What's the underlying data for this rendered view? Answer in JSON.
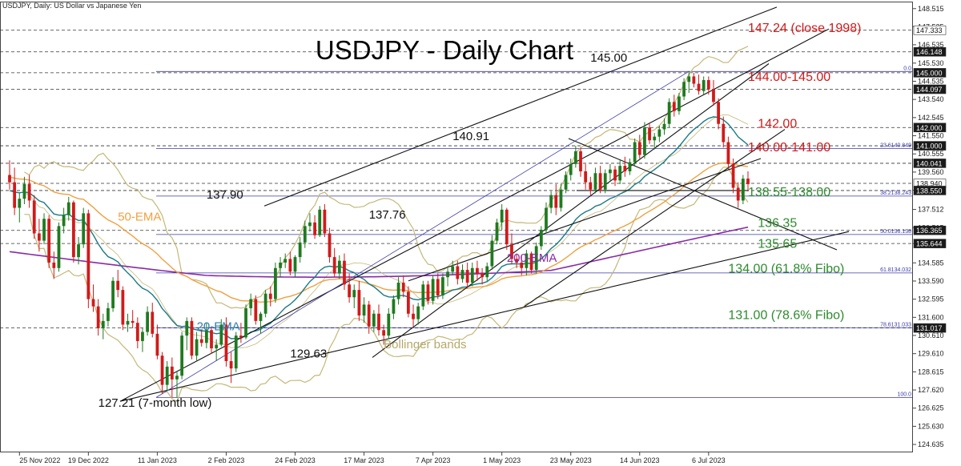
{
  "header": {
    "symbol_line": "USDJPY, Daily:  US Dollar vs Japanese Yen"
  },
  "chart_data": {
    "type": "candlestick",
    "title": "USDJPY - Daily Chart",
    "colors": {
      "up": "#1f7a1f",
      "down": "#d11a1a",
      "ema20": "#1a7a86",
      "ema50": "#f0a040",
      "ema200": "#8a2aa8",
      "bollinger": "#c4b878",
      "trend": "#111111",
      "fib": "#3a3aa8",
      "resistance_label": "#d11a1a",
      "support_label": "#2e8b2e",
      "ema50_label": "#f0a040",
      "ema20_label": "#2a7fb0",
      "ema200_label": "#8a2aa8",
      "bollinger_label": "#b5a86a"
    },
    "x_ticks": [
      "25 Nov 2022",
      "19 Dec 2022",
      "11 Jan 2023",
      "2 Feb 2023",
      "24 Feb 2023",
      "17 Mar 2023",
      "7 Apr 2023",
      "1 May 2023",
      "23 May 2023",
      "14 Jun 2023",
      "6 Jul 2023"
    ],
    "y_ticks": [
      "148.515",
      "147.525",
      "146.535",
      "145.530",
      "144.535",
      "143.540",
      "142.545",
      "141.550",
      "140.555",
      "139.560",
      "138.565",
      "137.512",
      "136.515",
      "135.644",
      "134.585",
      "133.590",
      "132.595",
      "131.600",
      "130.610",
      "129.610",
      "128.615",
      "127.620",
      "126.625",
      "125.630",
      "124.635"
    ],
    "y_range": [
      124.2,
      148.9
    ],
    "price_boxes": [
      {
        "label": "147.333",
        "value": 147.333,
        "dark": false
      },
      {
        "label": "146.148",
        "value": 146.148,
        "dark": true
      },
      {
        "label": "145.000",
        "value": 145.0,
        "dark": true
      },
      {
        "label": "144.097",
        "value": 144.097,
        "dark": true
      },
      {
        "label": "142.000",
        "value": 142.0,
        "dark": true
      },
      {
        "label": "141.000",
        "value": 141.0,
        "dark": true
      },
      {
        "label": "140.041",
        "value": 140.041,
        "dark": true
      },
      {
        "label": "138.940",
        "value": 138.94,
        "dark": false
      },
      {
        "label": "138.550",
        "value": 138.55,
        "dark": true
      },
      {
        "label": "136.365",
        "value": 136.365,
        "dark": true
      },
      {
        "label": "135.644",
        "value": 135.644,
        "dark": true
      },
      {
        "label": "131.017",
        "value": 131.017,
        "dark": true
      }
    ],
    "fibo_levels": [
      {
        "label": "0.0",
        "value": 145.07
      },
      {
        "label": "23.6140.849",
        "value": 140.849
      },
      {
        "label": "38.2138.243",
        "value": 138.243
      },
      {
        "label": "50.0136.138",
        "value": 136.138
      },
      {
        "label": "61.8134.032",
        "value": 134.032
      },
      {
        "label": "78.6131.033",
        "value": 131.033
      },
      {
        "label": "100.0",
        "value": 127.21
      }
    ],
    "annotations": [
      {
        "text": "147.24 (close 1998)",
        "color": "resistance",
        "x": 150,
        "y": 147.24
      },
      {
        "text": "144.00-145.00",
        "color": "resistance",
        "x": 150,
        "y": 144.55
      },
      {
        "text": "142.00",
        "color": "resistance",
        "x": 152,
        "y": 142.0
      },
      {
        "text": "140.00-141.00",
        "color": "resistance",
        "x": 150,
        "y": 140.7
      },
      {
        "text": "138.55-138.00",
        "color": "support",
        "x": 150,
        "y": 138.25
      },
      {
        "text": "136.35",
        "color": "support",
        "x": 152,
        "y": 136.55
      },
      {
        "text": "135.65",
        "color": "support",
        "x": 152,
        "y": 135.4
      },
      {
        "text": "134.00 (61.8% Fibo)",
        "color": "support",
        "x": 146,
        "y": 134.05
      },
      {
        "text": "131.00 (78.6% Fibo)",
        "color": "support",
        "x": 146,
        "y": 131.5
      },
      {
        "text": "145.00",
        "color": "black",
        "x": 118,
        "y": 145.6
      },
      {
        "text": "140.91",
        "color": "black",
        "x": 90,
        "y": 141.3
      },
      {
        "text": "137.90",
        "color": "black",
        "x": 40,
        "y": 138.1
      },
      {
        "text": "137.76",
        "color": "black",
        "x": 73,
        "y": 137.0
      },
      {
        "text": "129.63",
        "color": "black",
        "x": 57,
        "y": 129.4
      },
      {
        "text": "127.21 (7-month low)",
        "color": "black",
        "x": 18,
        "y": 126.7
      },
      {
        "text": "50-EMA",
        "color": "ema50",
        "x": 22,
        "y": 136.9
      },
      {
        "text": "20-EMA",
        "color": "ema20",
        "x": 38,
        "y": 130.9
      },
      {
        "text": "200-EMA",
        "color": "ema200",
        "x": 101,
        "y": 134.65
      },
      {
        "text": "Bollinger bands",
        "color": "bollinger",
        "x": 76,
        "y": 129.9
      }
    ],
    "ohlc": [
      [
        139.4,
        140.2,
        138.6,
        139.0
      ],
      [
        139.0,
        139.8,
        137.2,
        137.6
      ],
      [
        137.6,
        138.4,
        136.8,
        138.1
      ],
      [
        138.1,
        139.3,
        137.8,
        138.9
      ],
      [
        138.9,
        139.4,
        137.6,
        138.0
      ],
      [
        138.0,
        138.3,
        135.9,
        136.2
      ],
      [
        136.2,
        137.0,
        135.2,
        135.8
      ],
      [
        135.8,
        137.3,
        135.6,
        137.0
      ],
      [
        137.0,
        137.2,
        134.3,
        134.6
      ],
      [
        134.6,
        135.2,
        133.7,
        134.3
      ],
      [
        134.3,
        136.8,
        134.1,
        136.6
      ],
      [
        136.6,
        137.6,
        136.2,
        137.2
      ],
      [
        137.2,
        138.2,
        136.9,
        137.9
      ],
      [
        137.9,
        138.0,
        134.6,
        134.9
      ],
      [
        134.9,
        136.0,
        134.5,
        135.6
      ],
      [
        135.6,
        137.6,
        135.4,
        137.3
      ],
      [
        137.3,
        137.5,
        132.1,
        132.6
      ],
      [
        132.6,
        133.4,
        131.9,
        132.2
      ],
      [
        132.2,
        132.6,
        130.6,
        131.0
      ],
      [
        131.0,
        131.8,
        130.4,
        131.4
      ],
      [
        131.4,
        132.4,
        131.1,
        132.1
      ],
      [
        132.1,
        133.8,
        131.9,
        133.6
      ],
      [
        133.6,
        134.2,
        132.7,
        133.1
      ],
      [
        133.1,
        133.3,
        130.9,
        131.2
      ],
      [
        131.2,
        131.8,
        130.8,
        131.4
      ],
      [
        131.4,
        132.0,
        131.0,
        131.3
      ],
      [
        131.3,
        131.6,
        129.9,
        130.3
      ],
      [
        130.3,
        131.0,
        129.7,
        130.8
      ],
      [
        130.8,
        132.2,
        130.6,
        131.9
      ],
      [
        131.9,
        132.4,
        130.5,
        130.7
      ],
      [
        130.7,
        131.2,
        129.3,
        129.5
      ],
      [
        129.5,
        129.7,
        127.4,
        127.9
      ],
      [
        127.9,
        129.2,
        127.6,
        128.9
      ],
      [
        128.9,
        129.4,
        127.2,
        128.2
      ],
      [
        128.2,
        128.6,
        127.2,
        128.4
      ],
      [
        128.4,
        130.8,
        128.2,
        130.6
      ],
      [
        130.6,
        131.6,
        129.8,
        131.4
      ],
      [
        131.4,
        131.6,
        129.3,
        129.5
      ],
      [
        129.5,
        130.8,
        129.2,
        130.4
      ],
      [
        130.4,
        130.9,
        130.0,
        130.2
      ],
      [
        130.2,
        131.3,
        129.9,
        130.9
      ],
      [
        130.9,
        131.1,
        129.6,
        129.9
      ],
      [
        129.9,
        130.4,
        129.2,
        130.1
      ],
      [
        130.1,
        131.5,
        130.0,
        131.2
      ],
      [
        131.2,
        131.6,
        128.9,
        129.2
      ],
      [
        129.2,
        129.7,
        128.0,
        128.8
      ],
      [
        128.8,
        130.8,
        128.6,
        130.6
      ],
      [
        130.6,
        131.3,
        130.2,
        130.5
      ],
      [
        130.5,
        132.3,
        130.4,
        132.1
      ],
      [
        132.1,
        132.9,
        131.7,
        132.6
      ],
      [
        132.6,
        132.8,
        131.2,
        131.4
      ],
      [
        131.4,
        131.9,
        130.7,
        131.8
      ],
      [
        131.8,
        133.1,
        131.6,
        132.9
      ],
      [
        132.9,
        133.3,
        132.2,
        132.6
      ],
      [
        132.6,
        134.6,
        132.4,
        134.3
      ],
      [
        134.3,
        134.9,
        133.8,
        134.6
      ],
      [
        134.6,
        135.1,
        134.3,
        134.8
      ],
      [
        134.8,
        135.2,
        133.9,
        134.1
      ],
      [
        134.1,
        135.0,
        133.8,
        134.9
      ],
      [
        134.9,
        136.0,
        134.6,
        135.7
      ],
      [
        135.7,
        136.9,
        135.4,
        136.6
      ],
      [
        136.6,
        137.3,
        136.3,
        136.8
      ],
      [
        136.8,
        137.2,
        135.9,
        136.1
      ],
      [
        136.1,
        137.7,
        136.0,
        137.5
      ],
      [
        137.5,
        137.8,
        136.0,
        136.2
      ],
      [
        136.2,
        136.5,
        134.6,
        134.9
      ],
      [
        134.9,
        135.4,
        133.8,
        134.0
      ],
      [
        134.0,
        135.0,
        133.7,
        134.7
      ],
      [
        134.7,
        135.1,
        133.1,
        133.4
      ],
      [
        133.4,
        134.0,
        132.4,
        132.7
      ],
      [
        132.7,
        133.4,
        132.1,
        133.1
      ],
      [
        133.1,
        133.6,
        131.4,
        131.7
      ],
      [
        131.7,
        132.7,
        131.3,
        132.3
      ],
      [
        132.3,
        132.5,
        130.7,
        131.1
      ],
      [
        131.1,
        132.0,
        130.8,
        131.8
      ],
      [
        131.8,
        132.3,
        130.6,
        130.9
      ],
      [
        130.9,
        131.2,
        130.1,
        130.6
      ],
      [
        130.6,
        132.1,
        130.4,
        131.8
      ],
      [
        131.8,
        132.8,
        131.5,
        132.6
      ],
      [
        132.6,
        133.8,
        132.3,
        133.5
      ],
      [
        133.5,
        133.9,
        132.7,
        133.0
      ],
      [
        133.0,
        133.3,
        131.6,
        131.8
      ],
      [
        131.8,
        132.3,
        131.1,
        131.5
      ],
      [
        131.5,
        132.4,
        131.2,
        132.2
      ],
      [
        132.2,
        133.6,
        132.0,
        133.4
      ],
      [
        133.4,
        133.6,
        132.3,
        132.5
      ],
      [
        132.5,
        133.9,
        132.3,
        133.7
      ],
      [
        133.7,
        134.0,
        132.6,
        132.8
      ],
      [
        132.8,
        134.0,
        132.6,
        133.8
      ],
      [
        133.8,
        134.3,
        133.3,
        134.1
      ],
      [
        134.1,
        134.7,
        133.9,
        134.4
      ],
      [
        134.4,
        134.7,
        133.4,
        133.7
      ],
      [
        133.7,
        134.5,
        133.5,
        134.2
      ],
      [
        134.2,
        134.6,
        133.2,
        133.5
      ],
      [
        133.5,
        134.6,
        133.3,
        134.3
      ],
      [
        134.3,
        134.7,
        133.6,
        134.0
      ],
      [
        134.0,
        134.3,
        133.4,
        133.8
      ],
      [
        133.8,
        134.6,
        133.6,
        134.4
      ],
      [
        134.4,
        136.1,
        134.2,
        135.8
      ],
      [
        135.8,
        137.0,
        135.6,
        136.8
      ],
      [
        136.8,
        137.8,
        136.4,
        137.5
      ],
      [
        137.5,
        137.6,
        135.3,
        135.6
      ],
      [
        135.6,
        136.2,
        134.5,
        134.8
      ],
      [
        134.8,
        135.1,
        134.3,
        134.6
      ],
      [
        134.6,
        135.0,
        133.9,
        134.3
      ],
      [
        134.3,
        135.3,
        133.9,
        135.1
      ],
      [
        135.1,
        135.2,
        134.0,
        134.2
      ],
      [
        134.2,
        135.7,
        134.0,
        135.5
      ],
      [
        135.5,
        136.6,
        135.3,
        136.4
      ],
      [
        136.4,
        137.9,
        136.2,
        137.6
      ],
      [
        137.6,
        138.5,
        137.3,
        138.3
      ],
      [
        138.3,
        138.9,
        137.2,
        137.6
      ],
      [
        137.6,
        138.9,
        137.4,
        138.6
      ],
      [
        138.6,
        139.6,
        138.4,
        139.4
      ],
      [
        139.4,
        140.3,
        139.1,
        140.0
      ],
      [
        140.0,
        141.0,
        139.8,
        140.7
      ],
      [
        140.7,
        140.9,
        139.3,
        139.6
      ],
      [
        139.6,
        140.0,
        138.6,
        139.0
      ],
      [
        139.0,
        139.3,
        138.3,
        138.6
      ],
      [
        138.6,
        139.8,
        138.4,
        139.5
      ],
      [
        139.5,
        139.9,
        138.4,
        138.6
      ],
      [
        138.6,
        139.7,
        138.4,
        139.5
      ],
      [
        139.5,
        140.0,
        139.1,
        139.7
      ],
      [
        139.7,
        139.9,
        138.8,
        139.1
      ],
      [
        139.1,
        140.2,
        138.9,
        139.9
      ],
      [
        139.9,
        140.4,
        139.3,
        139.6
      ],
      [
        139.6,
        140.3,
        139.4,
        140.1
      ],
      [
        140.1,
        141.4,
        139.9,
        141.2
      ],
      [
        141.2,
        141.6,
        140.3,
        140.5
      ],
      [
        140.5,
        142.3,
        140.3,
        142.0
      ],
      [
        142.0,
        142.2,
        141.1,
        141.3
      ],
      [
        141.3,
        141.7,
        140.8,
        141.5
      ],
      [
        141.5,
        142.1,
        141.2,
        141.9
      ],
      [
        141.9,
        142.5,
        141.6,
        142.2
      ],
      [
        142.2,
        143.6,
        142.0,
        143.4
      ],
      [
        143.4,
        143.8,
        142.6,
        142.9
      ],
      [
        142.9,
        143.9,
        142.7,
        143.7
      ],
      [
        143.7,
        144.7,
        143.5,
        144.5
      ],
      [
        144.5,
        145.1,
        143.9,
        144.8
      ],
      [
        144.8,
        145.0,
        144.2,
        144.4
      ],
      [
        144.4,
        144.9,
        143.8,
        144.0
      ],
      [
        144.0,
        144.8,
        143.8,
        144.6
      ],
      [
        144.6,
        144.8,
        143.8,
        144.1
      ],
      [
        144.1,
        144.6,
        143.2,
        143.4
      ],
      [
        143.4,
        143.6,
        141.9,
        142.2
      ],
      [
        142.2,
        142.6,
        140.9,
        141.2
      ],
      [
        141.2,
        141.5,
        139.7,
        140.0
      ],
      [
        140.0,
        140.3,
        138.4,
        138.7
      ],
      [
        138.7,
        139.0,
        137.6,
        138.0
      ],
      [
        138.0,
        139.4,
        137.8,
        139.2
      ],
      [
        139.2,
        139.6,
        138.5,
        138.9
      ]
    ]
  }
}
